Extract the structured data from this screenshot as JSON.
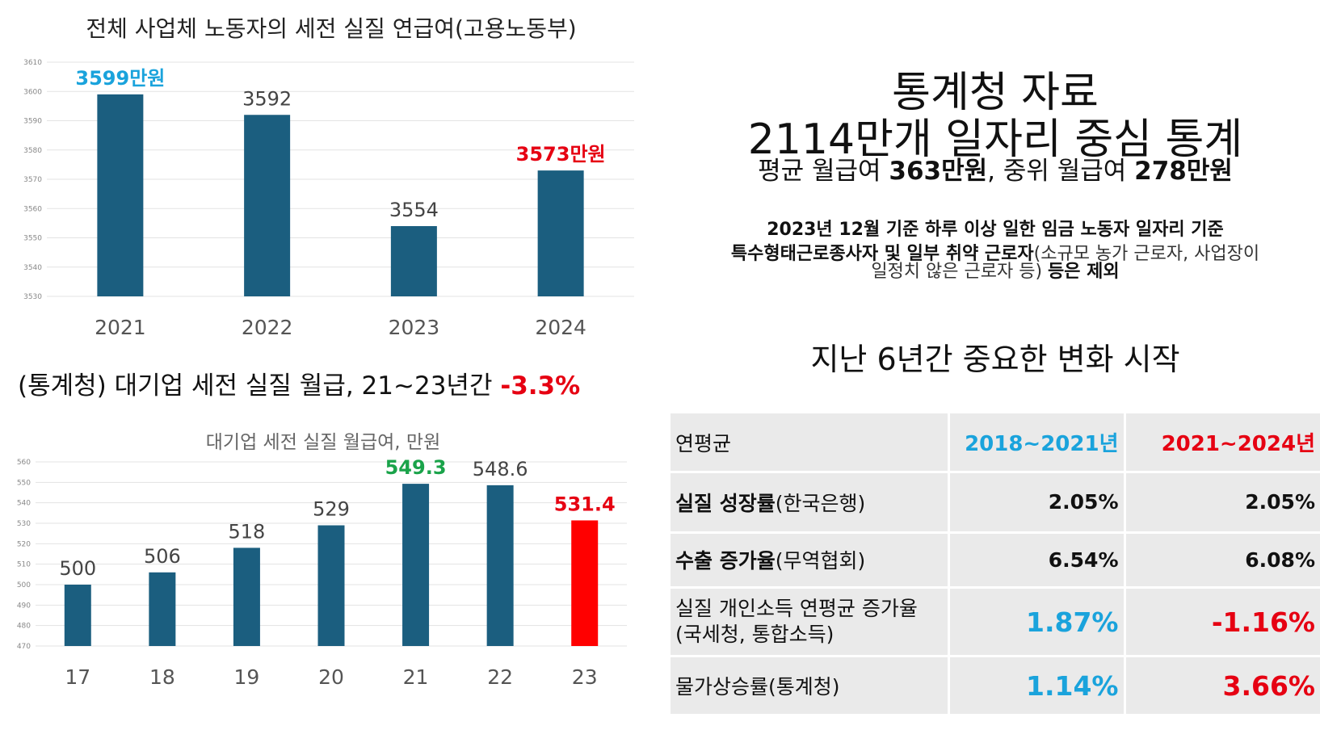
{
  "chart1": {
    "title": "전체 사업체 노동자의 세전 실질 연급여(고용노동부)",
    "chart_data": {
      "type": "bar",
      "categories": [
        "2021",
        "2022",
        "2023",
        "2024"
      ],
      "values": [
        3599,
        3592,
        3554,
        3573
      ],
      "labels": [
        "3599만원",
        "3592",
        "3554",
        "3573만원"
      ],
      "label_colors": [
        "#1aa3dc",
        "#444444",
        "#444444",
        "#e60012"
      ],
      "ylim": [
        3530,
        3610
      ],
      "yticks": [
        3530,
        3540,
        3550,
        3560,
        3570,
        3580,
        3590,
        3600,
        3610
      ],
      "bar_color": "#1b5e7f",
      "grid": true
    }
  },
  "chart2": {
    "heading": "(통계청) 대기업 세전 실질 월급, 21~23년간",
    "heading_highlight": "-3.3%",
    "title": "대기업 세전 실질 월급여, 만원",
    "chart_data": {
      "type": "bar",
      "categories": [
        "17",
        "18",
        "19",
        "20",
        "21",
        "22",
        "23"
      ],
      "values": [
        500,
        506,
        518,
        529,
        549.3,
        548.6,
        531.4
      ],
      "labels": [
        "500",
        "506",
        "518",
        "529",
        "549.3",
        "548.6",
        "531.4"
      ],
      "label_colors": [
        "#444444",
        "#444444",
        "#444444",
        "#444444",
        "#1aa34a",
        "#444444",
        "#e60012"
      ],
      "bar_colors": [
        "#1b5e7f",
        "#1b5e7f",
        "#1b5e7f",
        "#1b5e7f",
        "#1b5e7f",
        "#1b5e7f",
        "#ff0000"
      ],
      "ylim": [
        470,
        560
      ],
      "yticks": [
        470,
        480,
        490,
        500,
        510,
        520,
        530,
        540,
        550,
        560
      ],
      "grid": true
    }
  },
  "stats": {
    "title_line1": "통계청 자료",
    "title_line2": "2114만개 일자리 중심 통계",
    "summary_prefix": "평균 월급여 ",
    "summary_avg": "363만원",
    "summary_mid": ", 중위 월급여 ",
    "summary_median": "278만원",
    "note_line1": "2023년 12월 기준 하루 이상 일한 임금 노동자 일자리 기준",
    "note_line2_bold": "특수형태근로종사자 및 일부 취약 근로자",
    "note_line2_normal": "(소규모 농가 근로자, 사업장이",
    "note_line3_normal": "일정치 않은 근로자 등) ",
    "note_line3_bold": "등은 제외",
    "section_title": "지난 6년간 중요한 변화 시작"
  },
  "table": {
    "header": {
      "label": "연평균",
      "col1": "2018~2021년",
      "col2": "2021~2024년"
    },
    "rows": [
      {
        "label_bold": "실질 성장률",
        "label_normal": "(한국은행)",
        "col1": "2.05%",
        "col2": "2.05%"
      },
      {
        "label_bold": "수출 증가율",
        "label_normal": "(무역협회)",
        "col1": "6.54%",
        "col2": "6.08%"
      },
      {
        "label_line1": "실질 개인소득 연평균 증가율",
        "label_line2": "(국세청, 통합소득)",
        "col1": "1.87%",
        "col2": "-1.16%"
      },
      {
        "label_normal": "물가상승률(통계청)",
        "col1": "1.14%",
        "col2": "3.66%"
      }
    ]
  }
}
